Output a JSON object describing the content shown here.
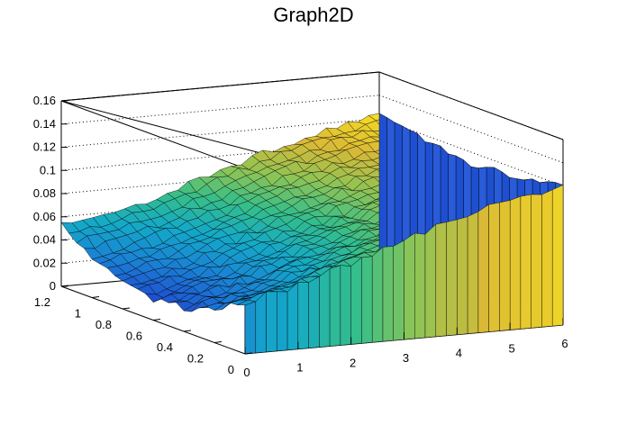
{
  "chart_data": {
    "type": "surface",
    "title": "Graph2D",
    "x": {
      "label": "",
      "range": [
        0,
        6
      ],
      "ticks": [
        "0",
        "1",
        "2",
        "3",
        "4",
        "5",
        "6"
      ]
    },
    "y": {
      "label": "",
      "range": [
        0,
        1.2
      ],
      "ticks": [
        "0",
        "0.2",
        "0.4",
        "0.6",
        "0.8",
        "1",
        "1.2"
      ]
    },
    "z": {
      "label": "",
      "range": [
        0,
        0.16
      ],
      "ticks": [
        "0",
        "0.02",
        "0.04",
        "0.06",
        "0.08",
        "0.1",
        "0.12",
        "0.14",
        "0.16"
      ]
    },
    "grid": true,
    "colormap": [
      "#352a87",
      "#1f4fd1",
      "#1a84d4",
      "#14a9c8",
      "#35be8a",
      "#8ec455",
      "#d9b936",
      "#f9e021"
    ],
    "surface_rows_y": [
      0,
      0.2,
      0.4,
      0.6,
      0.8,
      1.0,
      1.2
    ],
    "surface_cols_x": [
      0,
      1,
      2,
      3,
      4,
      5,
      6
    ],
    "surface_z": [
      [
        0.045,
        0.055,
        0.07,
        0.085,
        0.1,
        0.112,
        0.12
      ],
      [
        0.028,
        0.04,
        0.058,
        0.076,
        0.092,
        0.106,
        0.115
      ],
      [
        0.02,
        0.035,
        0.052,
        0.07,
        0.086,
        0.1,
        0.112
      ],
      [
        0.018,
        0.032,
        0.05,
        0.068,
        0.084,
        0.098,
        0.11
      ],
      [
        0.022,
        0.036,
        0.054,
        0.072,
        0.088,
        0.102,
        0.114
      ],
      [
        0.035,
        0.046,
        0.06,
        0.078,
        0.094,
        0.108,
        0.118
      ],
      [
        0.055,
        0.06,
        0.072,
        0.088,
        0.102,
        0.114,
        0.122
      ]
    ]
  }
}
